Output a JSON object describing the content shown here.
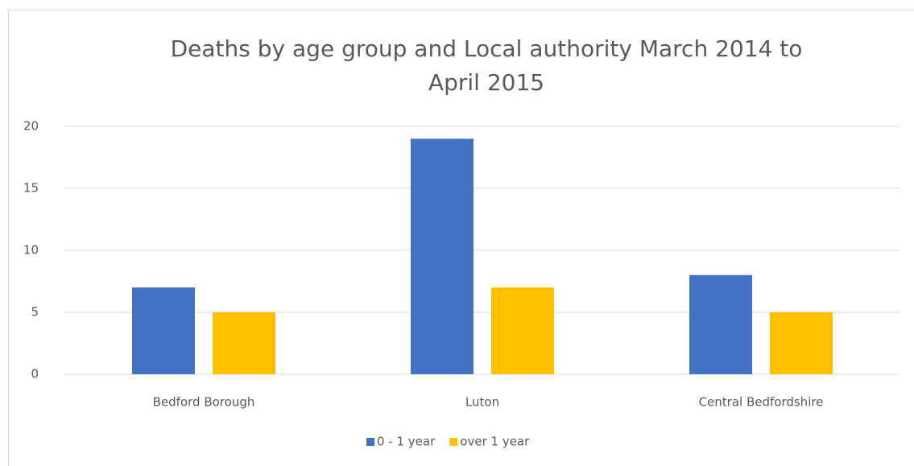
{
  "chart_data": {
    "type": "bar",
    "title": [
      "Deaths by age group and Local authority March 2014 to",
      "April 2015"
    ],
    "categories": [
      "Bedford Borough",
      "Luton",
      "Central Bedfordshire"
    ],
    "series": [
      {
        "name": "0 - 1 year",
        "color": "#4472c4",
        "values": [
          7,
          19,
          8
        ]
      },
      {
        "name": "over 1 year",
        "color": "#ffc000",
        "values": [
          5,
          7,
          5
        ]
      }
    ],
    "ylim": [
      0,
      20
    ],
    "yticks": [
      0,
      5,
      10,
      15,
      20
    ],
    "grid": true,
    "legend": "bottom"
  }
}
